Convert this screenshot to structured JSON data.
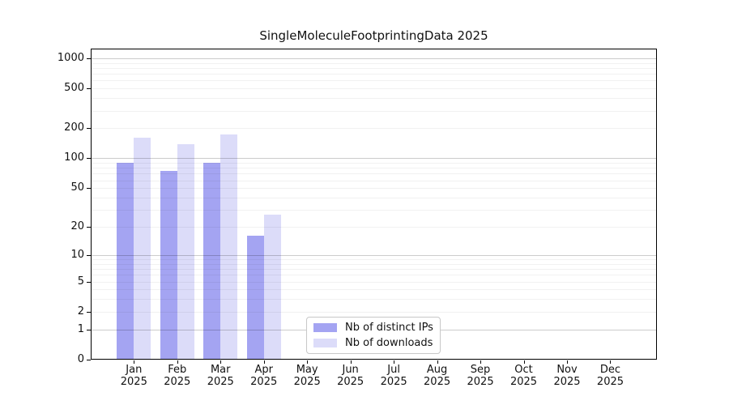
{
  "title": "SingleMoleculeFootprintingData 2025",
  "chart_data": {
    "type": "bar",
    "title": "SingleMoleculeFootprintingData 2025",
    "categories": [
      "Jan",
      "Feb",
      "Mar",
      "Apr",
      "May",
      "Jun",
      "Jul",
      "Aug",
      "Sep",
      "Oct",
      "Nov",
      "Dec"
    ],
    "category_year": "2025",
    "series": [
      {
        "name": "Nb of distinct IPs",
        "color": "#a4a4f2",
        "values": [
          90,
          75,
          90,
          16,
          0,
          0,
          0,
          0,
          0,
          0,
          0,
          0
        ]
      },
      {
        "name": "Nb of downloads",
        "color": "#dcdcf9",
        "values": [
          160,
          139,
          172,
          27,
          0,
          0,
          0,
          0,
          0,
          0,
          0,
          0
        ]
      }
    ],
    "y_scale": "log1p",
    "y_ticks": [
      0,
      1,
      2,
      5,
      10,
      20,
      50,
      100,
      200,
      500,
      1000
    ],
    "y_major_gridlines": [
      1,
      10,
      100,
      1000
    ],
    "ylim": [
      0,
      1000
    ],
    "grid": true,
    "legend_position": "lower center"
  },
  "colors": {
    "major_grid": "#c8c8c8",
    "minor_grid": "#ededed",
    "axis": "#000000",
    "background": "#ffffff"
  }
}
